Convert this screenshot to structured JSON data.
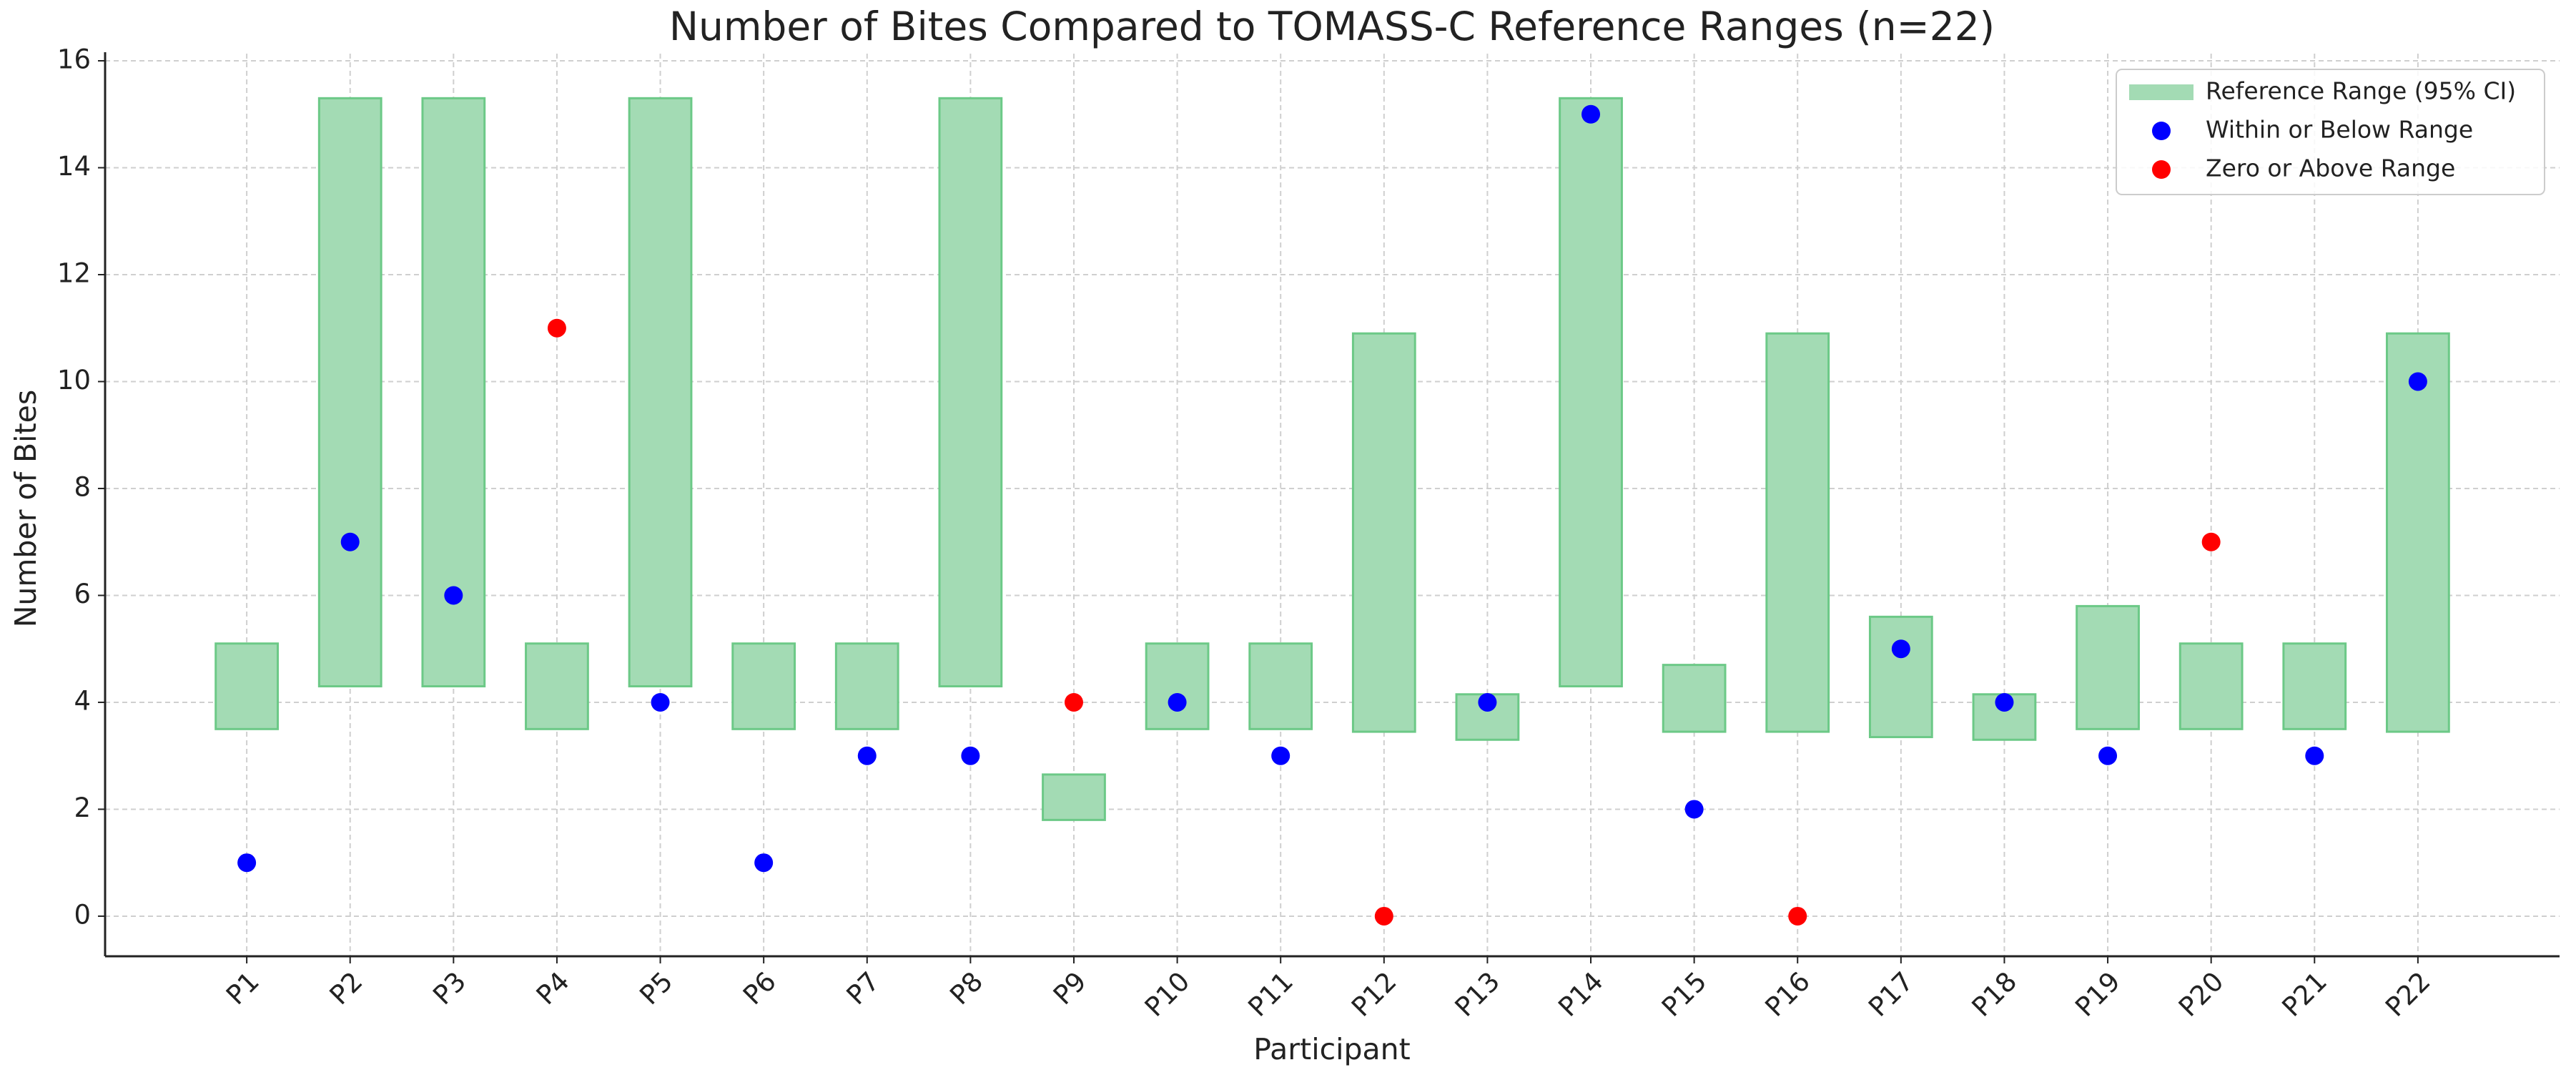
{
  "chart_data": {
    "type": "range_scatter",
    "title": "Number of Bites Compared to TOMASS-C Reference Ranges (n=22)",
    "x_label": "Participant",
    "y_label": "Number of Bites",
    "categories": [
      "P1",
      "P2",
      "P3",
      "P4",
      "P5",
      "P6",
      "P7",
      "P8",
      "P9",
      "P10",
      "P11",
      "P12",
      "P13",
      "P14",
      "P15",
      "P16",
      "P17",
      "P18",
      "P19",
      "P20",
      "P21",
      "P22"
    ],
    "series": [
      {
        "name": "Reference Range (95% CI)",
        "color": "#a3dbb4",
        "edge_color": "#6cc987",
        "low": [
          3.5,
          4.3,
          4.3,
          3.5,
          4.3,
          3.5,
          3.5,
          4.3,
          1.8,
          3.5,
          3.5,
          3.45,
          3.3,
          4.3,
          3.45,
          3.45,
          3.35,
          3.3,
          3.5,
          3.5,
          3.5,
          3.45
        ],
        "high": [
          5.1,
          15.3,
          15.3,
          5.1,
          15.3,
          5.1,
          5.1,
          15.3,
          2.65,
          5.1,
          5.1,
          10.9,
          4.15,
          15.3,
          4.7,
          10.9,
          5.6,
          4.15,
          5.8,
          5.1,
          5.1,
          10.9
        ]
      },
      {
        "name": "Within or Below Range",
        "color": "#0000ff",
        "values": [
          1,
          7,
          6,
          null,
          4,
          1,
          3,
          3,
          null,
          4,
          3,
          null,
          4,
          15,
          2,
          null,
          5,
          4,
          3,
          null,
          3,
          10
        ]
      },
      {
        "name": "Zero or Above Range",
        "color": "#ff0000",
        "values": [
          null,
          null,
          null,
          11,
          null,
          null,
          null,
          null,
          4,
          null,
          null,
          0,
          null,
          null,
          null,
          0,
          null,
          null,
          null,
          7,
          null,
          null
        ]
      }
    ],
    "ylim": [
      -0.75,
      16
    ],
    "yticks": [
      0,
      2,
      4,
      6,
      8,
      10,
      12,
      14,
      16
    ],
    "grid": true,
    "legend": "upper right"
  }
}
